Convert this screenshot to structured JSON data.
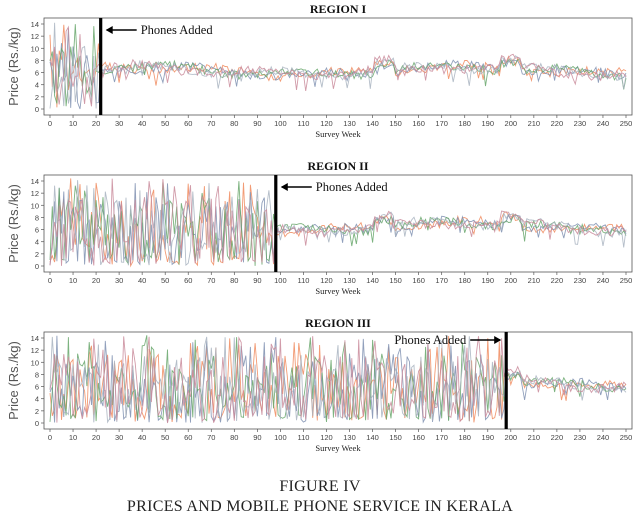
{
  "figure": {
    "caption_line1": "FIGURE IV",
    "caption_line2": "PRICES AND MOBILE PHONE SERVICE IN KERALA"
  },
  "series_colors": [
    "#f08a5d",
    "#7e8fb0",
    "#66a66a",
    "#a8b3bf",
    "#c9899a"
  ],
  "chart_data": [
    {
      "type": "line",
      "title": "REGION I",
      "xlabel": "Survey Week",
      "ylabel": "Price (Rs./kg)",
      "xlim": [
        0,
        250
      ],
      "ylim": [
        0,
        14
      ],
      "x_ticks": [
        "0",
        "10",
        "20",
        "30",
        "40",
        "50",
        "60",
        "70",
        "80",
        "90",
        "100",
        "110",
        "120",
        "130",
        "140",
        "150",
        "160",
        "170",
        "180",
        "190",
        "200",
        "210",
        "220",
        "230",
        "240",
        "250"
      ],
      "y_ticks": [
        "0",
        "2",
        "4",
        "6",
        "8",
        "10",
        "12",
        "14"
      ],
      "annotation": {
        "label": "Phones Added",
        "week": 22
      },
      "approx_series_pattern": {
        "before_phones": {
          "mean": 6.5,
          "spread": 4.5
        },
        "after_phones": {
          "mean": 6.3,
          "spread": 1.2
        }
      }
    },
    {
      "type": "line",
      "title": "REGION II",
      "xlabel": "Survey Week",
      "ylabel": "Price (Rs./kg)",
      "xlim": [
        0,
        250
      ],
      "ylim": [
        0,
        14
      ],
      "x_ticks": [
        "0",
        "10",
        "20",
        "30",
        "40",
        "50",
        "60",
        "70",
        "80",
        "90",
        "100",
        "110",
        "120",
        "130",
        "140",
        "150",
        "160",
        "170",
        "180",
        "190",
        "200",
        "210",
        "220",
        "230",
        "240",
        "250"
      ],
      "y_ticks": [
        "0",
        "2",
        "4",
        "6",
        "8",
        "10",
        "12",
        "14"
      ],
      "annotation": {
        "label": "Phones Added",
        "week": 98
      },
      "approx_series_pattern": {
        "before_phones": {
          "mean": 6.0,
          "spread": 5.5
        },
        "after_phones": {
          "mean": 6.5,
          "spread": 1.2
        }
      }
    },
    {
      "type": "line",
      "title": "REGION III",
      "xlabel": "Survey Week",
      "ylabel": "Price (Rs./kg)",
      "xlim": [
        0,
        250
      ],
      "ylim": [
        0,
        14
      ],
      "x_ticks": [
        "0",
        "10",
        "20",
        "30",
        "40",
        "50",
        "60",
        "70",
        "80",
        "90",
        "100",
        "110",
        "120",
        "130",
        "140",
        "150",
        "160",
        "170",
        "180",
        "190",
        "200",
        "210",
        "220",
        "230",
        "240",
        "250"
      ],
      "y_ticks": [
        "0",
        "2",
        "4",
        "6",
        "8",
        "10",
        "12",
        "14"
      ],
      "annotation": {
        "label": "Phones Added",
        "week": 198
      },
      "approx_series_pattern": {
        "before_phones": {
          "mean": 6.0,
          "spread": 5.5
        },
        "after_phones": {
          "mean": 6.5,
          "spread": 1.2
        }
      }
    }
  ]
}
